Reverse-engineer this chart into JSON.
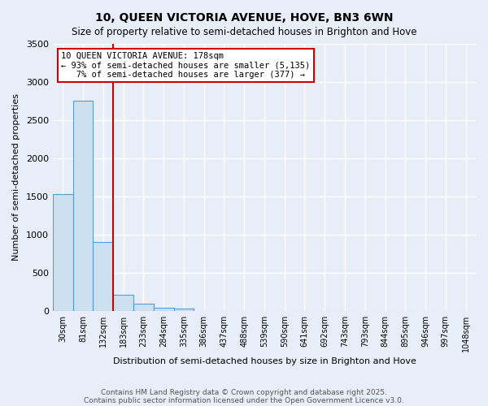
{
  "title1": "10, QUEEN VICTORIA AVENUE, HOVE, BN3 6WN",
  "title2": "Size of property relative to semi-detached houses in Brighton and Hove",
  "xlabel": "Distribution of semi-detached houses by size in Brighton and Hove",
  "ylabel": "Number of semi-detached properties",
  "bin_labels": [
    "30sqm",
    "81sqm",
    "132sqm",
    "183sqm",
    "233sqm",
    "284sqm",
    "335sqm",
    "386sqm",
    "437sqm",
    "488sqm",
    "539sqm",
    "590sqm",
    "641sqm",
    "692sqm",
    "743sqm",
    "793sqm",
    "844sqm",
    "895sqm",
    "946sqm",
    "997sqm",
    "1048sqm"
  ],
  "bar_heights": [
    1530,
    2750,
    900,
    210,
    95,
    40,
    35,
    0,
    0,
    0,
    0,
    0,
    0,
    0,
    0,
    0,
    0,
    0,
    0,
    0,
    0
  ],
  "bar_color": "#cce0f0",
  "bar_edge_color": "#5b9bd5",
  "property_size": "178sqm",
  "pct_smaller": 93,
  "n_smaller": 5135,
  "pct_larger": 7,
  "n_larger": 377,
  "annotation_box_color": "#ffffff",
  "annotation_box_edge": "#cc0000",
  "vline_color": "#cc0000",
  "vline_x": 2.5,
  "ylim": [
    0,
    3500
  ],
  "yticks": [
    0,
    500,
    1000,
    1500,
    2000,
    2500,
    3000,
    3500
  ],
  "footnote1": "Contains HM Land Registry data © Crown copyright and database right 2025.",
  "footnote2": "Contains public sector information licensed under the Open Government Licence v3.0.",
  "bg_color": "#e8eef8",
  "grid_color": "#ffffff"
}
